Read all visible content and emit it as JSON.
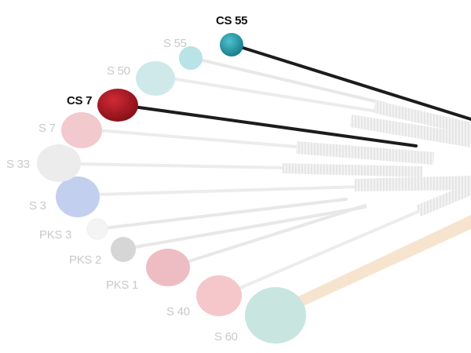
{
  "mallets": [
    {
      "id": "cs55",
      "label": "CS 55",
      "highlighted": true,
      "head_color": "#1e8f9e",
      "shaft_color": "#1c1c1c"
    },
    {
      "id": "s55",
      "label": "S 55",
      "highlighted": false,
      "head_color": "#b9e3e6",
      "shaft_color": "#e8e8e8"
    },
    {
      "id": "s50",
      "label": "S 50",
      "highlighted": false,
      "head_color": "#cfe9ea",
      "shaft_color": "#ececec"
    },
    {
      "id": "cs7",
      "label": "CS 7",
      "highlighted": true,
      "head_color": "#a5131f",
      "shaft_color": "#1c1c1c"
    },
    {
      "id": "s7",
      "label": "S 7",
      "highlighted": false,
      "head_color": "#f2c9cd",
      "shaft_color": "#ececec"
    },
    {
      "id": "s33",
      "label": "S 33",
      "highlighted": false,
      "head_color": "#ececec",
      "shaft_color": "#eeeeee"
    },
    {
      "id": "s3",
      "label": "S 3",
      "highlighted": false,
      "head_color": "#c3cfee",
      "shaft_color": "#ececec"
    },
    {
      "id": "pks3",
      "label": "PKS 3",
      "highlighted": false,
      "head_color": "#f4f4f4",
      "shaft_color": "#e8e8e8"
    },
    {
      "id": "pks2",
      "label": "PKS 2",
      "highlighted": false,
      "head_color": "#d6d6d6",
      "shaft_color": "#e8e8e8"
    },
    {
      "id": "pks1",
      "label": "PKS 1",
      "highlighted": false,
      "head_color": "#eebcc3",
      "shaft_color": "#e8e8e8"
    },
    {
      "id": "s40",
      "label": "S 40",
      "highlighted": false,
      "head_color": "#f5c3c7",
      "shaft_color": "#ececec"
    },
    {
      "id": "s60",
      "label": "S 60",
      "highlighted": false,
      "head_color": "#c8e6df",
      "shaft_color": "#f6e3cc"
    }
  ]
}
